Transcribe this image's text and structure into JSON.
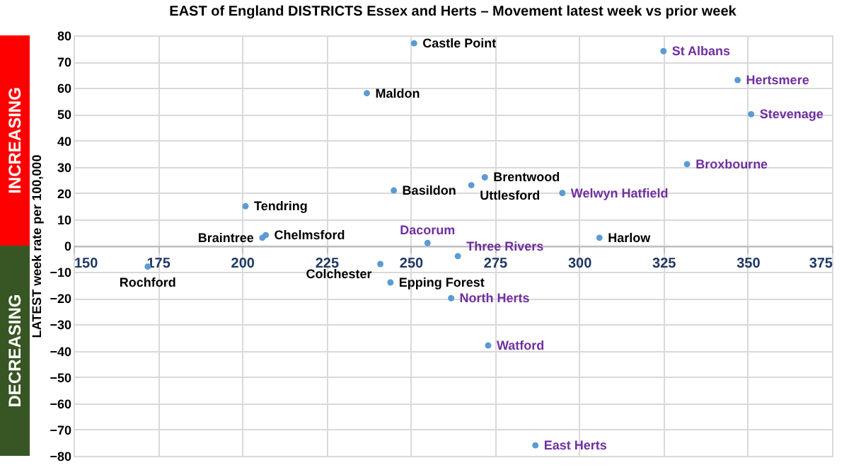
{
  "chart_data": {
    "type": "scatter",
    "title": "EAST of England DISTRICTS Essex and Herts – Movement latest week vs prior week",
    "ylabel": "LATEST week rate per 100,000",
    "xlim": [
      150,
      375
    ],
    "xticks": [
      150,
      175,
      200,
      225,
      250,
      275,
      300,
      325,
      350,
      375
    ],
    "ylim": [
      -80,
      80
    ],
    "yticks": [
      -80,
      -70,
      -60,
      -50,
      -40,
      -30,
      -20,
      -10,
      0,
      10,
      20,
      30,
      40,
      50,
      60,
      70,
      80
    ],
    "grid": true,
    "marker": "circle",
    "annotations": [
      "INCREASING",
      "DECREASING"
    ],
    "series": [
      {
        "color": "#5b9bd5",
        "x": [
          251,
          237,
          245,
          272,
          268,
          201,
          207,
          206,
          306,
          241,
          172,
          244
        ],
        "values": [
          77,
          58,
          21,
          26,
          23,
          15,
          4,
          3,
          3,
          -7,
          -8,
          -14
        ],
        "value_labels": [
          "Castle Point",
          "Maldon",
          "Basildon",
          "Brentwood",
          "Uttlesford",
          "Tendring",
          "Chelmsford",
          "Braintree",
          "Harlow",
          "Colchester",
          "Rochford",
          "Epping Forest"
        ]
      },
      {
        "color": "#5b9bd5",
        "x": [
          325,
          347,
          351,
          332,
          295,
          255,
          264,
          262,
          273,
          287
        ],
        "values": [
          74,
          63,
          50,
          31,
          20,
          1,
          -4,
          -20,
          -38,
          -76
        ],
        "value_labels": [
          "St Albans",
          "Hertsmere",
          "Stevenage",
          "Broxbourne",
          "Welwyn Hatfield",
          "Dacorum",
          "Three Rivers",
          "North Herts",
          "Watford",
          "East Herts"
        ]
      }
    ]
  }
}
